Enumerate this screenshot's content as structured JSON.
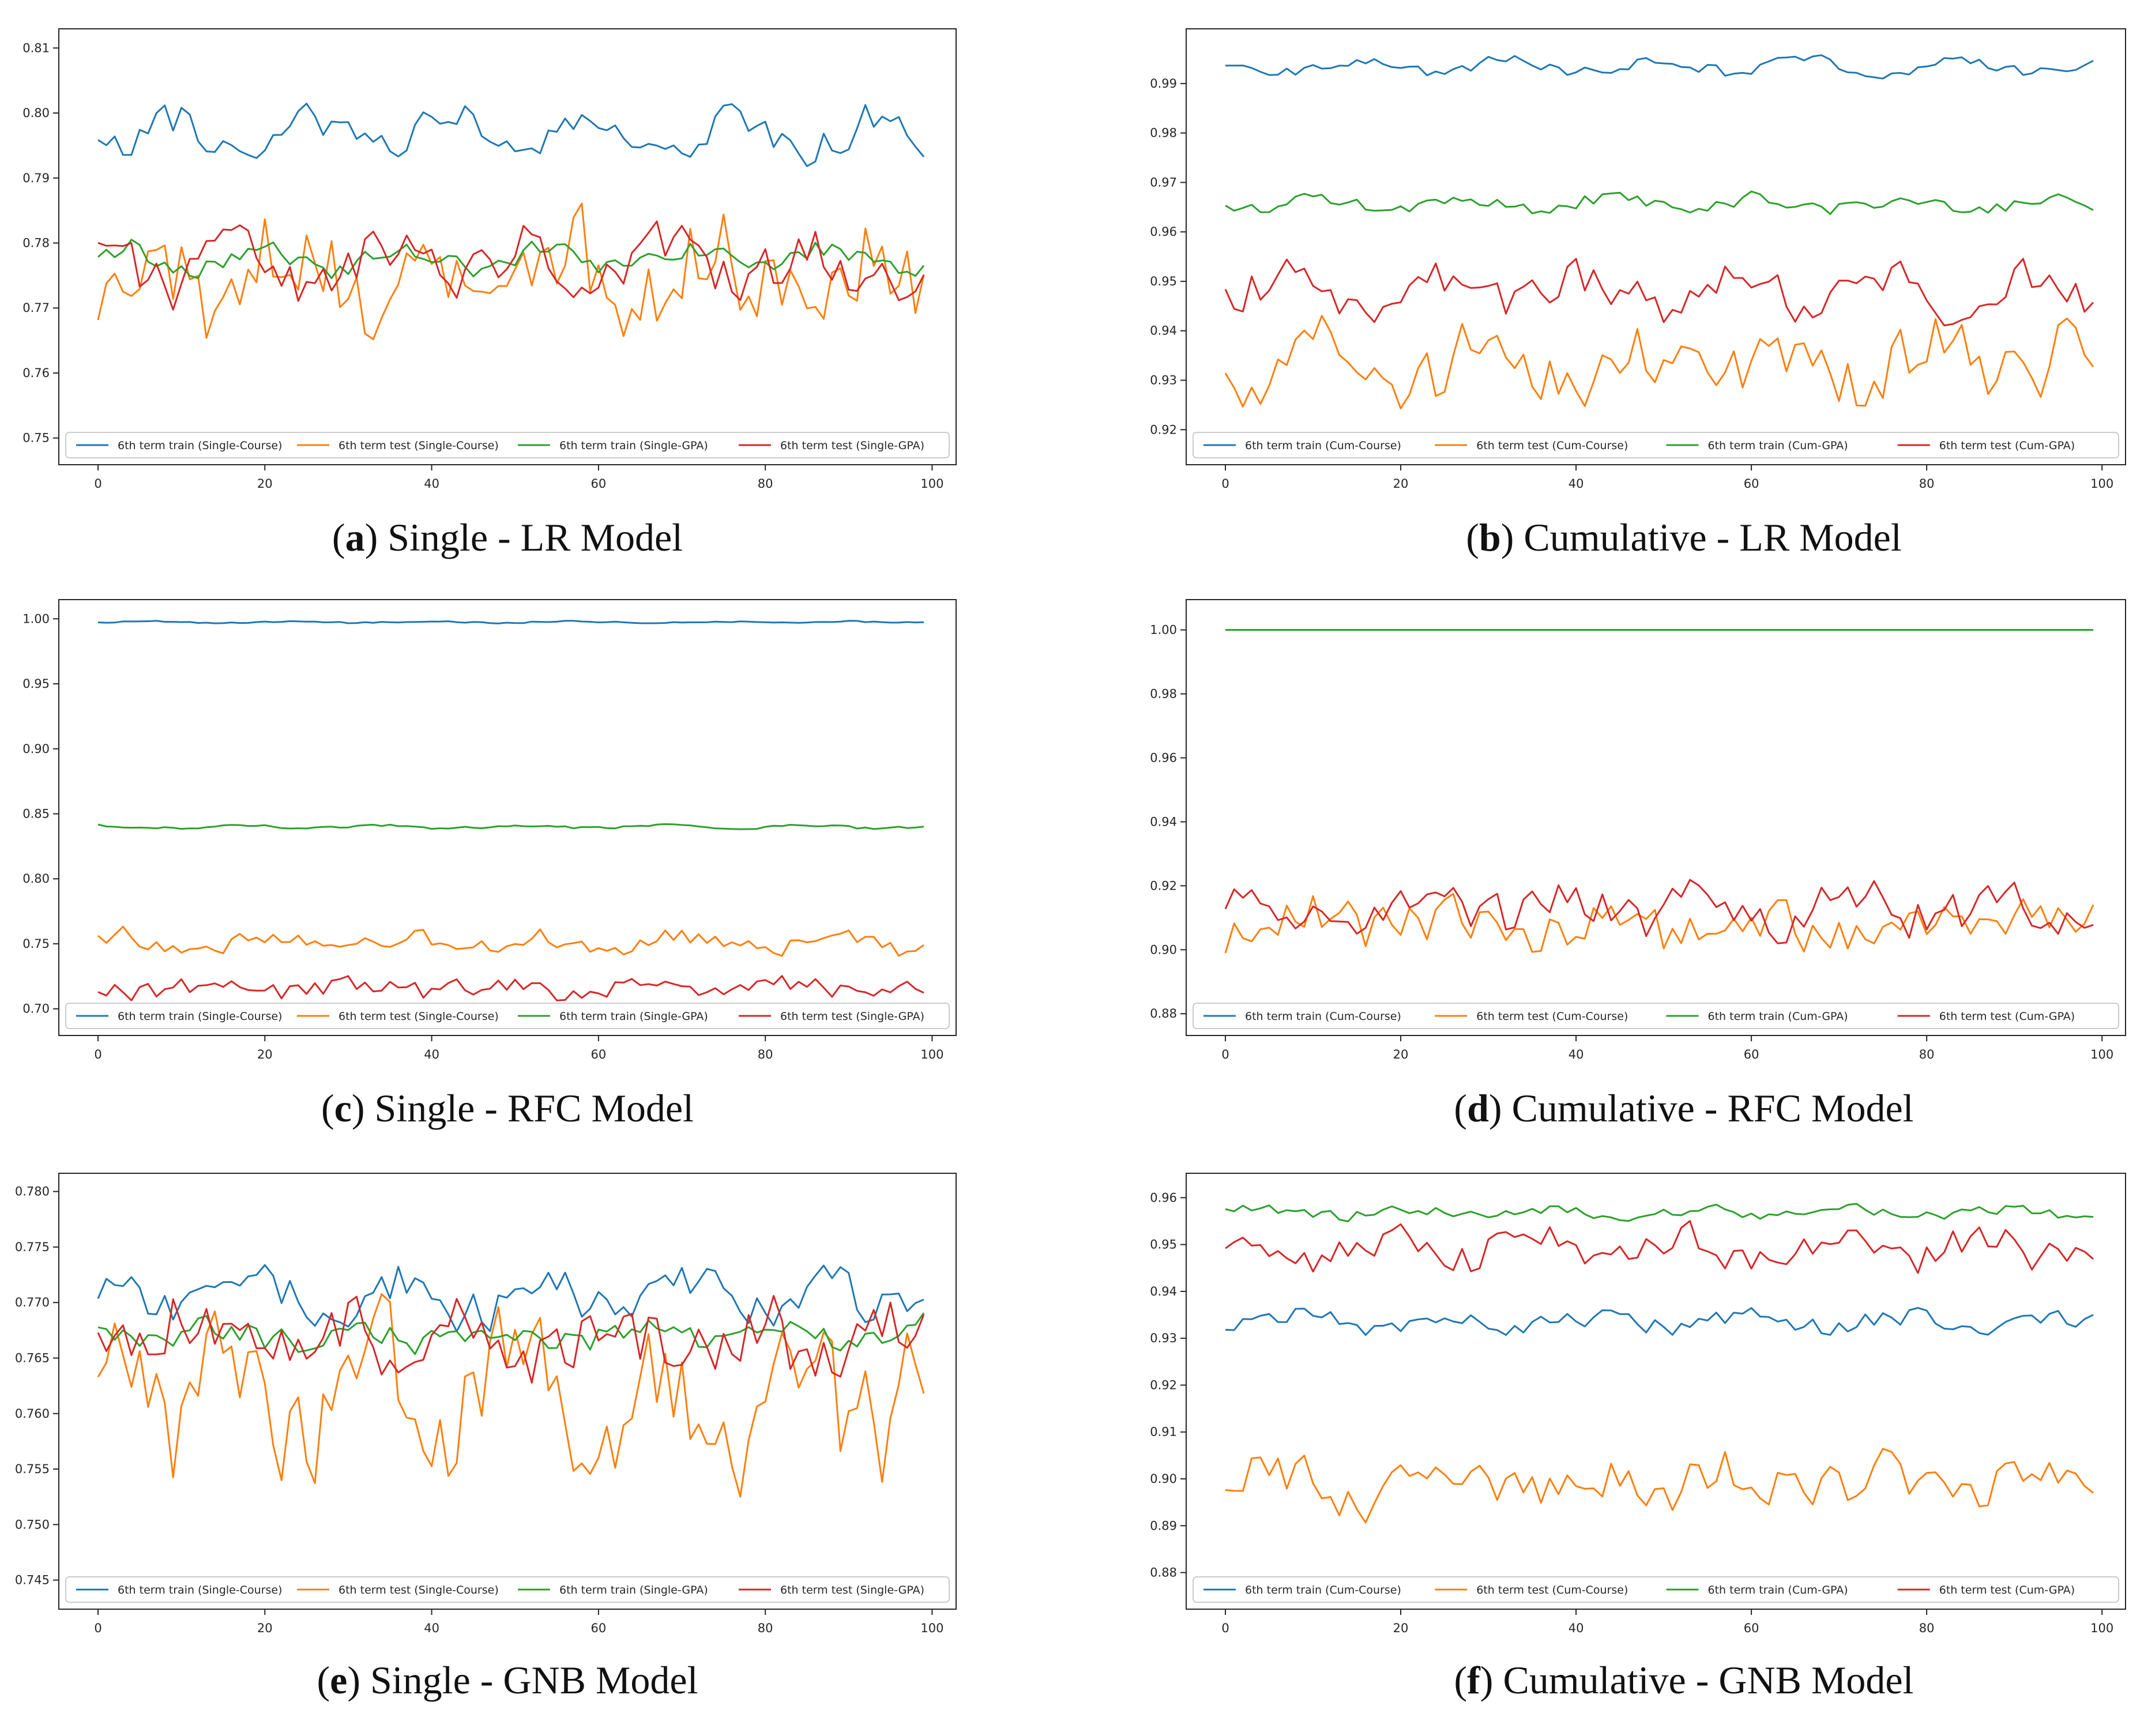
{
  "colors": {
    "train_course": "#1f77b4",
    "test_course": "#ff7f0e",
    "train_gpa": "#2ca02c",
    "test_gpa": "#d62728",
    "axis": "#262626"
  },
  "chart_data": [
    {
      "id": "a",
      "type": "line",
      "caption_letter": "a",
      "caption_text": " Single - LR Model",
      "xlim": [
        0,
        99
      ],
      "ylim": [
        0.749,
        0.811
      ],
      "xticks": [
        0,
        20,
        40,
        60,
        80,
        100
      ],
      "yticks": [
        0.75,
        0.76,
        0.77,
        0.78,
        0.79,
        0.8,
        0.81
      ],
      "ytick_labels": [
        "0.75",
        "0.76",
        "0.77",
        "0.78",
        "0.79",
        "0.80",
        "0.81"
      ],
      "legend_position": "bottom",
      "series": [
        {
          "name": "6th term train (Single-Course)",
          "color_key": "train_course",
          "params": {
            "base": 0.7965,
            "amp": 0.0028,
            "noise": 0.0032,
            "seed": 11
          }
        },
        {
          "name": "6th term test (Single-Course)",
          "color_key": "test_course",
          "params": {
            "base": 0.7755,
            "amp": 0.004,
            "noise": 0.009,
            "seed": 12
          }
        },
        {
          "name": "6th term train (Single-GPA)",
          "color_key": "train_gpa",
          "params": {
            "base": 0.7775,
            "amp": 0.0018,
            "noise": 0.0018,
            "seed": 13
          }
        },
        {
          "name": "6th term test (Single-GPA)",
          "color_key": "test_gpa",
          "params": {
            "base": 0.7765,
            "amp": 0.003,
            "noise": 0.0045,
            "seed": 14
          }
        }
      ]
    },
    {
      "id": "b",
      "type": "line",
      "caption_letter": "b",
      "caption_text": " Cumulative - LR Model",
      "xlim": [
        0,
        99
      ],
      "ylim": [
        0.917,
        0.9985
      ],
      "xticks": [
        0,
        20,
        40,
        60,
        80,
        100
      ],
      "yticks": [
        0.92,
        0.93,
        0.94,
        0.95,
        0.96,
        0.97,
        0.98,
        0.99
      ],
      "ytick_labels": [
        "0.92",
        "0.93",
        "0.94",
        "0.95",
        "0.96",
        "0.97",
        "0.98",
        "0.99"
      ],
      "legend_position": "bottom",
      "series": [
        {
          "name": "6th term train (Cum-Course)",
          "color_key": "train_course",
          "params": {
            "base": 0.9935,
            "amp": 0.0012,
            "noise": 0.0014,
            "seed": 21
          }
        },
        {
          "name": "6th term test (Cum-Course)",
          "color_key": "test_course",
          "params": {
            "base": 0.9335,
            "amp": 0.004,
            "noise": 0.0075,
            "seed": 22
          }
        },
        {
          "name": "6th term train (Cum-GPA)",
          "color_key": "train_gpa",
          "params": {
            "base": 0.9658,
            "amp": 0.0012,
            "noise": 0.0016,
            "seed": 23
          }
        },
        {
          "name": "6th term test (Cum-GPA)",
          "color_key": "test_gpa",
          "params": {
            "base": 0.9478,
            "amp": 0.003,
            "noise": 0.0048,
            "seed": 24
          }
        }
      ]
    },
    {
      "id": "c",
      "type": "line",
      "caption_letter": "c",
      "caption_text": " Single - RFC Model",
      "xlim": [
        0,
        99
      ],
      "ylim": [
        0.695,
        1.005
      ],
      "xticks": [
        0,
        20,
        40,
        60,
        80,
        100
      ],
      "yticks": [
        0.7,
        0.75,
        0.8,
        0.85,
        0.9,
        0.95,
        1.0
      ],
      "ytick_labels": [
        "0.70",
        "0.75",
        "0.80",
        "0.85",
        "0.90",
        "0.95",
        "1.00"
      ],
      "legend_position": "bottom",
      "series": [
        {
          "name": "6th term train (Single-Course)",
          "color_key": "train_course",
          "params": {
            "base": 0.9975,
            "amp": 0.0005,
            "noise": 0.0007,
            "seed": 31
          }
        },
        {
          "name": "6th term test (Single-Course)",
          "color_key": "test_course",
          "params": {
            "base": 0.751,
            "amp": 0.005,
            "noise": 0.0085,
            "seed": 32
          }
        },
        {
          "name": "6th term train (Single-GPA)",
          "color_key": "train_gpa",
          "params": {
            "base": 0.84,
            "amp": 0.001,
            "noise": 0.0012,
            "seed": 33
          }
        },
        {
          "name": "6th term test (Single-GPA)",
          "color_key": "test_gpa",
          "params": {
            "base": 0.716,
            "amp": 0.004,
            "noise": 0.0085,
            "seed": 34
          }
        }
      ]
    },
    {
      "id": "d",
      "type": "line",
      "caption_letter": "d",
      "caption_text": " Cumulative - RFC Model",
      "xlim": [
        0,
        99
      ],
      "ylim": [
        0.8795,
        1.0055
      ],
      "xticks": [
        0,
        20,
        40,
        60,
        80,
        100
      ],
      "yticks": [
        0.88,
        0.9,
        0.92,
        0.94,
        0.96,
        0.98,
        1.0
      ],
      "ytick_labels": [
        "0.88",
        "0.90",
        "0.92",
        "0.94",
        "0.96",
        "0.98",
        "1.00"
      ],
      "legend_position": "bottom",
      "series": [
        {
          "name": "6th term train (Cum-Course)",
          "color_key": "train_course",
          "params": {
            "base": 1.0,
            "amp": 0,
            "noise": 0,
            "seed": 41
          }
        },
        {
          "name": "6th term test (Cum-Course)",
          "color_key": "test_course",
          "params": {
            "base": 0.908,
            "amp": 0.003,
            "noise": 0.0085,
            "seed": 42
          }
        },
        {
          "name": "6th term train (Cum-GPA)",
          "color_key": "train_gpa",
          "params": {
            "base": 1.0,
            "amp": 0,
            "noise": 0,
            "seed": 43
          }
        },
        {
          "name": "6th term test (Cum-GPA)",
          "color_key": "test_gpa",
          "params": {
            "base": 0.913,
            "amp": 0.004,
            "noise": 0.0085,
            "seed": 44
          }
        }
      ]
    },
    {
      "id": "e",
      "type": "line",
      "caption_letter": "e",
      "caption_text": " Single - GNB Model",
      "xlim": [
        0,
        99
      ],
      "ylim": [
        0.7442,
        0.7805
      ],
      "xticks": [
        0,
        20,
        40,
        60,
        80,
        100
      ],
      "yticks": [
        0.745,
        0.75,
        0.755,
        0.76,
        0.765,
        0.77,
        0.775,
        0.78
      ],
      "ytick_labels": [
        "0.745",
        "0.750",
        "0.755",
        "0.760",
        "0.765",
        "0.770",
        "0.775",
        "0.780"
      ],
      "legend_position": "bottom",
      "series": [
        {
          "name": "6th term train (Single-Course)",
          "color_key": "train_course",
          "params": {
            "base": 0.7705,
            "amp": 0.0015,
            "noise": 0.0022,
            "seed": 51
          }
        },
        {
          "name": "6th term test (Single-Course)",
          "color_key": "test_course",
          "params": {
            "base": 0.7615,
            "amp": 0.003,
            "noise": 0.0068,
            "seed": 52
          }
        },
        {
          "name": "6th term train (Single-GPA)",
          "color_key": "train_gpa",
          "params": {
            "base": 0.7672,
            "amp": 0.0008,
            "noise": 0.0014,
            "seed": 53
          }
        },
        {
          "name": "6th term test (Single-GPA)",
          "color_key": "test_gpa",
          "params": {
            "base": 0.7665,
            "amp": 0.002,
            "noise": 0.0036,
            "seed": 54
          }
        }
      ]
    },
    {
      "id": "f",
      "type": "line",
      "caption_letter": "f",
      "caption_text": " Cumulative - GNB Model",
      "xlim": [
        0,
        99
      ],
      "ylim": [
        0.8765,
        0.9625
      ],
      "xticks": [
        0,
        20,
        40,
        60,
        80,
        100
      ],
      "yticks": [
        0.88,
        0.89,
        0.9,
        0.91,
        0.92,
        0.93,
        0.94,
        0.95,
        0.96
      ],
      "ytick_labels": [
        "0.88",
        "0.89",
        "0.90",
        "0.91",
        "0.92",
        "0.93",
        "0.94",
        "0.95",
        "0.96"
      ],
      "legend_position": "bottom",
      "series": [
        {
          "name": "6th term train (Cum-Course)",
          "color_key": "train_course",
          "params": {
            "base": 0.9335,
            "amp": 0.0012,
            "noise": 0.0024,
            "seed": 61
          }
        },
        {
          "name": "6th term test (Cum-Course)",
          "color_key": "test_course",
          "params": {
            "base": 0.899,
            "amp": 0.003,
            "noise": 0.0062,
            "seed": 62
          }
        },
        {
          "name": "6th term train (Cum-GPA)",
          "color_key": "train_gpa",
          "params": {
            "base": 0.9568,
            "amp": 0.0008,
            "noise": 0.0013,
            "seed": 63
          }
        },
        {
          "name": "6th term test (Cum-GPA)",
          "color_key": "test_gpa",
          "params": {
            "base": 0.949,
            "amp": 0.0025,
            "noise": 0.0042,
            "seed": 64
          }
        }
      ]
    }
  ]
}
